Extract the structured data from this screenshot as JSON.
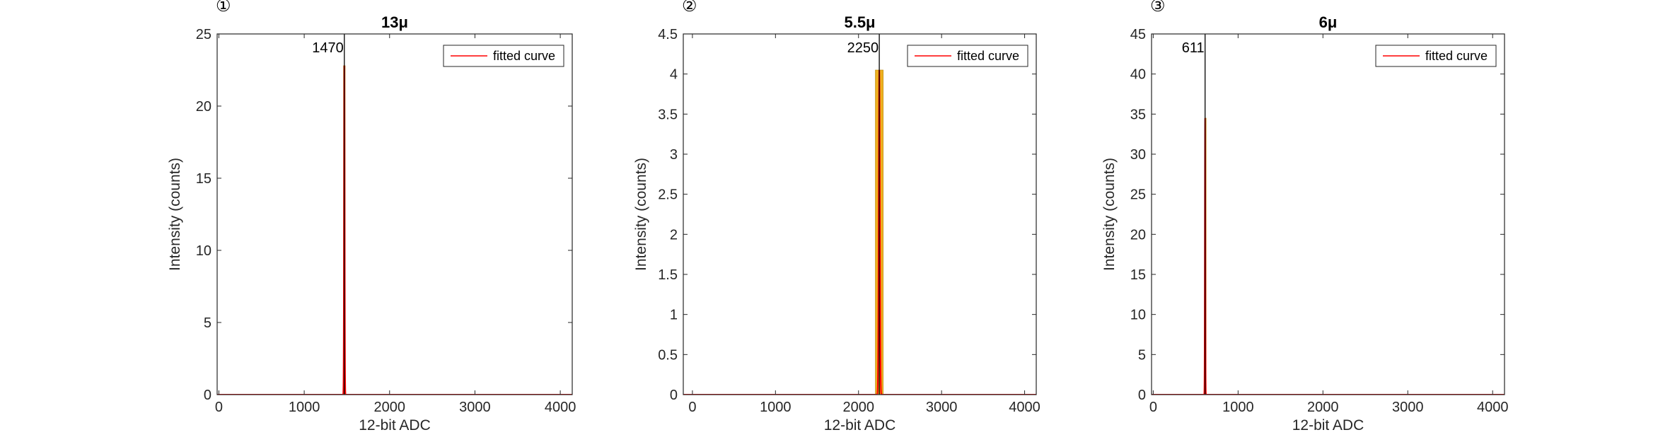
{
  "chart_data": [
    {
      "type": "bar",
      "marker": "①",
      "title": "13μ",
      "xlabel": "12-bit ADC",
      "ylabel": "Intensity (counts)",
      "xlim": [
        -20,
        4140
      ],
      "ylim": [
        0,
        25
      ],
      "xticks": [
        0,
        1000,
        2000,
        3000,
        4000
      ],
      "xtick_labels": [
        "0",
        "1000",
        "2000",
        "3000",
        "4000"
      ],
      "yticks": [
        0,
        5,
        10,
        15,
        20,
        25
      ],
      "ytick_labels": [
        "0",
        "5",
        "10",
        "15",
        "20",
        "25"
      ],
      "grid": false,
      "legend": {
        "entries": [
          "fitted curve"
        ],
        "position": "top-right",
        "color": "#ff0000"
      },
      "bar_color": "#edb120",
      "bars": [
        {
          "x": 1470,
          "width": 20,
          "value": 22.8
        }
      ],
      "fitted_curve": {
        "center": 1470,
        "sigma": 4,
        "amplitude": 22.8,
        "color": "#ff0000"
      },
      "peak": {
        "x": 1470,
        "label": "1470"
      }
    },
    {
      "type": "bar",
      "marker": "②",
      "title": "5.5μ",
      "xlabel": "12-bit ADC",
      "ylabel": "Intensity (counts)",
      "xlim": [
        -110,
        4140
      ],
      "ylim": [
        0,
        4.5
      ],
      "xticks": [
        0,
        1000,
        2000,
        3000,
        4000
      ],
      "xtick_labels": [
        "0",
        "1000",
        "2000",
        "3000",
        "4000"
      ],
      "yticks": [
        0,
        0.5,
        1,
        1.5,
        2,
        2.5,
        3,
        3.5,
        4,
        4.5
      ],
      "ytick_labels": [
        "0",
        "0.5",
        "1",
        "1.5",
        "2",
        "2.5",
        "3",
        "3.5",
        "4",
        "4.5"
      ],
      "grid": false,
      "legend": {
        "entries": [
          "fitted curve"
        ],
        "position": "top-right",
        "color": "#ff0000"
      },
      "bar_color": "#edb120",
      "bars": [
        {
          "x": 2250,
          "width": 95,
          "value": 4.05
        }
      ],
      "fitted_curve": {
        "center": 2250,
        "sigma": 7,
        "amplitude": 4.05,
        "color": "#ff0000"
      },
      "peak": {
        "x": 2250,
        "label": "2250"
      }
    },
    {
      "type": "bar",
      "marker": "③",
      "title": "6μ",
      "xlabel": "12-bit ADC",
      "ylabel": "Intensity (counts)",
      "xlim": [
        -20,
        4140
      ],
      "ylim": [
        0,
        45
      ],
      "xticks": [
        0,
        1000,
        2000,
        3000,
        4000
      ],
      "xtick_labels": [
        "0",
        "1000",
        "2000",
        "3000",
        "4000"
      ],
      "yticks": [
        0,
        5,
        10,
        15,
        20,
        25,
        30,
        35,
        40,
        45
      ],
      "ytick_labels": [
        "0",
        "5",
        "10",
        "15",
        "20",
        "25",
        "30",
        "35",
        "40",
        "45"
      ],
      "grid": false,
      "legend": {
        "entries": [
          "fitted curve"
        ],
        "position": "top-right",
        "color": "#ff0000"
      },
      "bar_color": "#edb120",
      "bars": [
        {
          "x": 611,
          "width": 8,
          "value": 34.5
        }
      ],
      "fitted_curve": {
        "center": 611,
        "sigma": 3,
        "amplitude": 34.5,
        "color": "#ff0000"
      },
      "peak": {
        "x": 611,
        "label": "611"
      }
    }
  ]
}
